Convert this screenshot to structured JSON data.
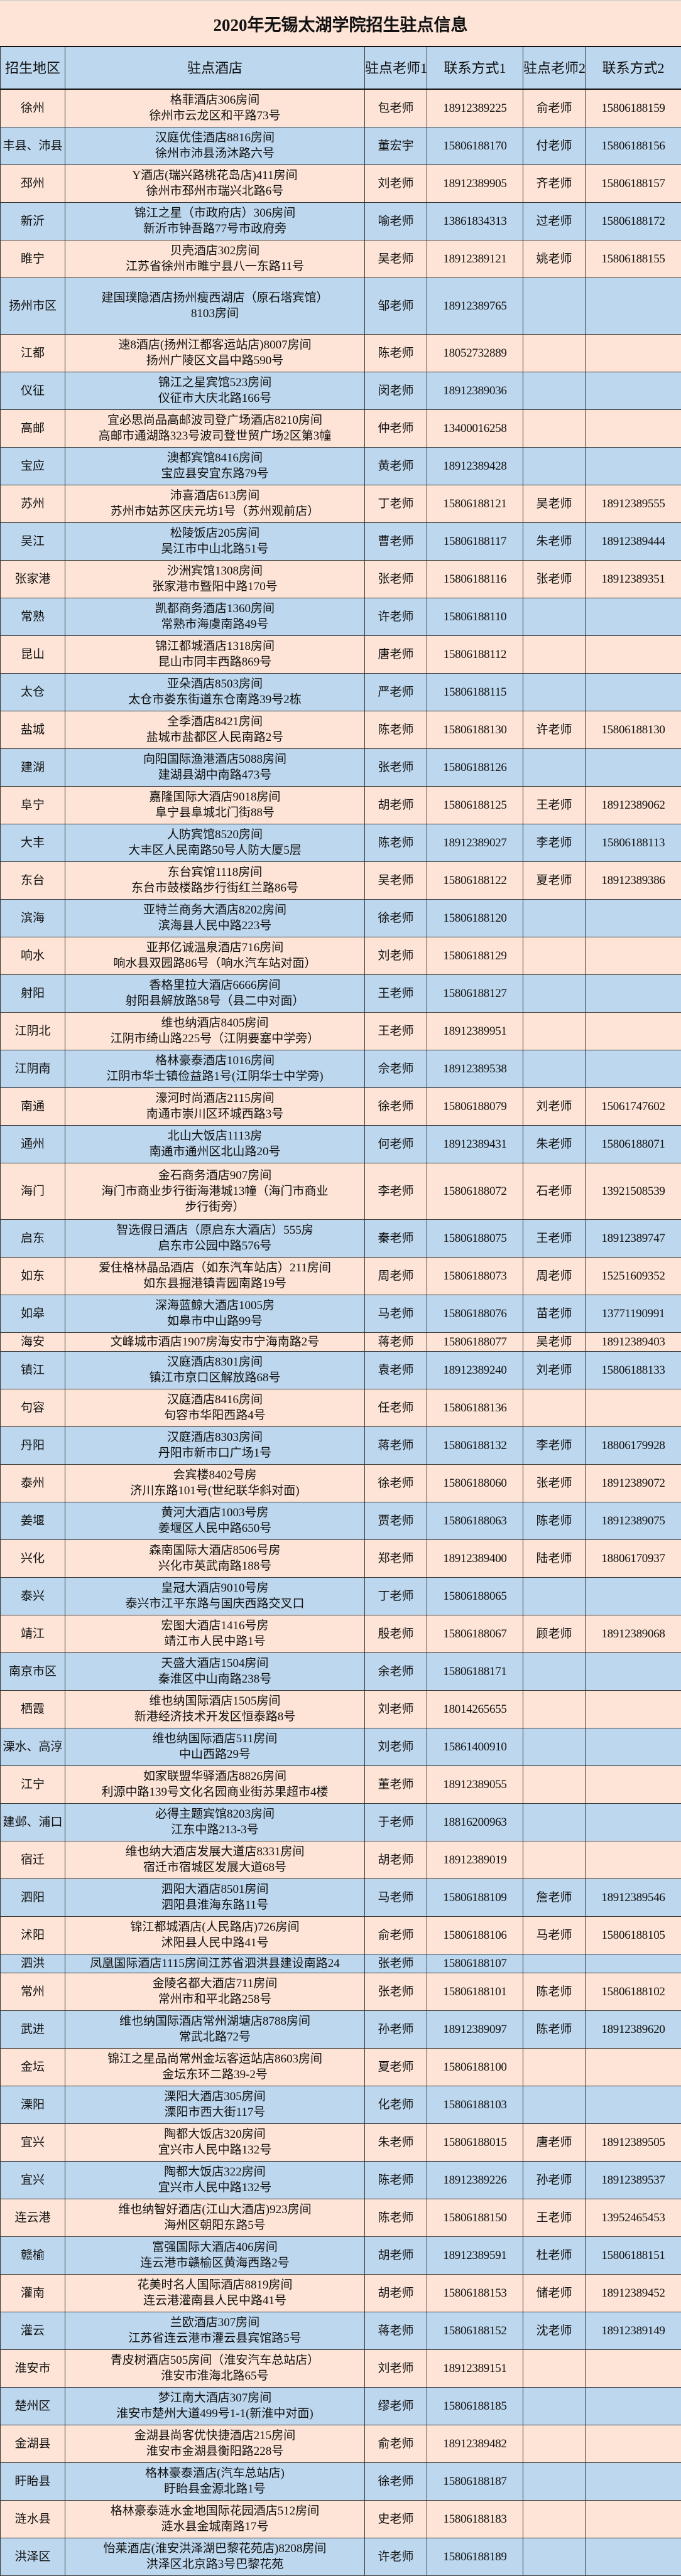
{
  "title": "2020年无锡太湖学院招生驻点信息",
  "colors": {
    "row_a": "#fde4d6",
    "row_b": "#bdd7ee",
    "header": "#bdd7ee"
  },
  "headers": [
    "招生地区",
    "驻点酒店",
    "驻点老师1",
    "联系方式1",
    "驻点老师2",
    "联系方式2"
  ],
  "rows": [
    {
      "region": "徐州",
      "hotel": [
        "格菲酒店306房间",
        "徐州市云龙区和平路73号"
      ],
      "t1": "包老师",
      "p1": "18912389225",
      "t2": "俞老师",
      "p2": "15806188159"
    },
    {
      "region": "丰县、沛县",
      "hotel": [
        "汉庭优佳酒店8816房间",
        "徐州市沛县汤沐路六号"
      ],
      "t1": "董宏宇",
      "p1": "15806188170",
      "t2": "付老师",
      "p2": "15806188156"
    },
    {
      "region": "邳州",
      "hotel": [
        "Y酒店(瑞兴路桃花岛店)411房间",
        "徐州市邳州市瑞兴北路6号"
      ],
      "t1": "刘老师",
      "p1": "18912389905",
      "t2": "齐老师",
      "p2": "15806188157"
    },
    {
      "region": "新沂",
      "hotel": [
        "锦江之星（市政府店）306房间",
        "新沂市钟吾路77号市政府旁"
      ],
      "t1": "喻老师",
      "p1": "13861834313",
      "t2": "过老师",
      "p2": "15806188172"
    },
    {
      "region": "睢宁",
      "hotel": [
        "贝壳酒店302房间",
        "江苏省徐州市睢宁县八一东路11号"
      ],
      "t1": "吴老师",
      "p1": "18912389121",
      "t2": "姚老师",
      "p2": "15806188155"
    },
    {
      "region": "扬州市区",
      "hotel": [
        "建国璞隐酒店扬州瘦西湖店（原石塔宾馆）",
        "8103房间"
      ],
      "t1": "邹老师",
      "p1": "18912389765",
      "t2": "",
      "p2": ""
    },
    {
      "region": "江都",
      "hotel": [
        "速8酒店(扬州江都客运站店)8007房间",
        "扬州广陵区文昌中路590号"
      ],
      "t1": "陈老师",
      "p1": "18052732889",
      "t2": "",
      "p2": ""
    },
    {
      "region": "仪征",
      "hotel": [
        "锦江之星宾馆523房间",
        "仪征市大庆北路166号"
      ],
      "t1": "闵老师",
      "p1": "18912389036",
      "t2": "",
      "p2": ""
    },
    {
      "region": "高邮",
      "hotel": [
        "宜必思尚品高邮波司登广场酒店8210房间",
        "高邮市通湖路323号波司登世贸广场2区第3幢"
      ],
      "t1": "仲老师",
      "p1": "13400016258",
      "t2": "",
      "p2": ""
    },
    {
      "region": "宝应",
      "hotel": [
        "澳都宾馆8416房间",
        "宝应县安宜东路79号"
      ],
      "t1": "黄老师",
      "p1": "18912389428",
      "t2": "",
      "p2": ""
    },
    {
      "region": "苏州",
      "hotel": [
        "沛喜酒店613房间",
        "苏州市姑苏区庆元坊1号（苏州观前店）"
      ],
      "t1": "丁老师",
      "p1": "15806188121",
      "t2": "吴老师",
      "p2": "18912389555"
    },
    {
      "region": "吴江",
      "hotel": [
        "松陵饭店205房间",
        "吴江市中山北路51号"
      ],
      "t1": "曹老师",
      "p1": "15806188117",
      "t2": "朱老师",
      "p2": "18912389444"
    },
    {
      "region": "张家港",
      "hotel": [
        "沙洲宾馆1308房间",
        "张家港市暨阳中路170号"
      ],
      "t1": "张老师",
      "p1": "15806188116",
      "t2": "张老师",
      "p2": "18912389351"
    },
    {
      "region": "常熟",
      "hotel": [
        "凯都商务酒店1360房间",
        "常熟市海虞南路49号"
      ],
      "t1": "许老师",
      "p1": "15806188110",
      "t2": "",
      "p2": ""
    },
    {
      "region": "昆山",
      "hotel": [
        "锦江都城酒店1318房间",
        "昆山市同丰西路869号"
      ],
      "t1": "唐老师",
      "p1": "15806188112",
      "t2": "",
      "p2": ""
    },
    {
      "region": "太仓",
      "hotel": [
        "亚朵酒店8503房间",
        "太仓市娄东街道东仓南路39号2栋"
      ],
      "t1": "严老师",
      "p1": "15806188115",
      "t2": "",
      "p2": ""
    },
    {
      "region": "盐城",
      "hotel": [
        "全季酒店8421房间",
        "盐城市盐都区人民南路2号"
      ],
      "t1": "陈老师",
      "p1": "15806188130",
      "t2": "许老师",
      "p2": "15806188130"
    },
    {
      "region": "建湖",
      "hotel": [
        "向阳国际渔港酒店5088房间",
        "建湖县湖中南路473号"
      ],
      "t1": "张老师",
      "p1": "15806188126",
      "t2": "",
      "p2": ""
    },
    {
      "region": "阜宁",
      "hotel": [
        "嘉隆国际大酒店9018房间",
        "阜宁县阜城北门街88号"
      ],
      "t1": "胡老师",
      "p1": "15806188125",
      "t2": "王老师",
      "p2": "18912389062"
    },
    {
      "region": "大丰",
      "hotel": [
        "人防宾馆8520房间",
        "大丰区人民南路50号人防大厦5层"
      ],
      "t1": "陈老师",
      "p1": "18912389027",
      "t2": "李老师",
      "p2": "15806188113"
    },
    {
      "region": "东台",
      "hotel": [
        "东台宾馆1118房间",
        "东台市鼓楼路步行街红兰路86号"
      ],
      "t1": "吴老师",
      "p1": "15806188122",
      "t2": "夏老师",
      "p2": "18912389386"
    },
    {
      "region": "滨海",
      "hotel": [
        "亚特兰商务大酒店8202房间",
        "滨海县人民中路223号"
      ],
      "t1": "徐老师",
      "p1": "15806188120",
      "t2": "",
      "p2": ""
    },
    {
      "region": "响水",
      "hotel": [
        "亚邦亿诚温泉酒店716房间",
        "响水县双园路86号（响水汽车站对面）"
      ],
      "t1": "刘老师",
      "p1": "15806188129",
      "t2": "",
      "p2": ""
    },
    {
      "region": "射阳",
      "hotel": [
        "香格里拉大酒店6666房间",
        "射阳县解放路58号（县二中对面）"
      ],
      "t1": "王老师",
      "p1": "15806188127",
      "t2": "",
      "p2": ""
    },
    {
      "region": "江阴北",
      "hotel": [
        "维也纳酒店8405房间",
        "江阴市绮山路225号（江阴要塞中学旁）"
      ],
      "t1": "王老师",
      "p1": "18912389951",
      "t2": "",
      "p2": ""
    },
    {
      "region": "江阴南",
      "hotel": [
        "格林豪泰酒店1016房间",
        "江阴市华士镇俭益路1号(江阴华士中学旁)"
      ],
      "t1": "佘老师",
      "p1": "18912389538",
      "t2": "",
      "p2": ""
    },
    {
      "region": "南通",
      "hotel": [
        "濠河时尚酒店2115房间",
        "南通市崇川区环城西路3号"
      ],
      "t1": "徐老师",
      "p1": "15806188079",
      "t2": "刘老师",
      "p2": "15061747602"
    },
    {
      "region": "通州",
      "hotel": [
        "北山大饭店1113房",
        "南通市通州区北山路20号"
      ],
      "t1": "何老师",
      "p1": "18912389431",
      "t2": "朱老师",
      "p2": "15806188071"
    },
    {
      "region": "海门",
      "hotel": [
        "金石商务酒店907房间",
        "海门市商业步行街海港城13幢（海门市商业",
        "步行街旁）"
      ],
      "t1": "李老师",
      "p1": "15806188072",
      "t2": "石老师",
      "p2": "13921508539"
    },
    {
      "region": "启东",
      "hotel": [
        "智选假日酒店（原启东大酒店）555房",
        "启东市公园中路576号"
      ],
      "t1": "秦老师",
      "p1": "15806188075",
      "t2": "王老师",
      "p2": "18912389747"
    },
    {
      "region": "如东",
      "hotel": [
        "爱住格林晶品酒店（如东汽车站店）211房间",
        "如东县掘港镇青园南路19号"
      ],
      "t1": "周老师",
      "p1": "15806188073",
      "t2": "周老师",
      "p2": "15251609352"
    },
    {
      "region": "如皋",
      "hotel": [
        "深海蓝鲸大酒店1005房",
        "如皋市中山路99号"
      ],
      "t1": "马老师",
      "p1": "15806188076",
      "t2": "苗老师",
      "p2": "13771190991"
    },
    {
      "region": "海安",
      "hotel": [
        "文峰城市酒店1907房海安市宁海南路2号"
      ],
      "t1": "蒋老师",
      "p1": "15806188077",
      "t2": "吴老师",
      "p2": "18912389403"
    },
    {
      "region": "镇江",
      "hotel": [
        "汉庭酒店8301房间",
        "镇江市京口区解放路68号"
      ],
      "t1": "袁老师",
      "p1": "18912389240",
      "t2": "刘老师",
      "p2": "15806188133"
    },
    {
      "region": "句容",
      "hotel": [
        "汉庭酒店8416房间",
        "句容市华阳西路4号"
      ],
      "t1": "任老师",
      "p1": "15806188136",
      "t2": "",
      "p2": ""
    },
    {
      "region": "丹阳",
      "hotel": [
        "汉庭酒店8303房间",
        "丹阳市新市口广场1号"
      ],
      "t1": "蒋老师",
      "p1": "15806188132",
      "t2": "李老师",
      "p2": "18806179928"
    },
    {
      "region": "泰州",
      "hotel": [
        "会宾楼8402号房",
        "济川东路101号(世纪联华斜对面)"
      ],
      "t1": "徐老师",
      "p1": "15806188060",
      "t2": "张老师",
      "p2": "18912389072"
    },
    {
      "region": "姜堰",
      "hotel": [
        "黄河大酒店1003号房",
        "姜堰区人民中路650号"
      ],
      "t1": "贾老师",
      "p1": "15806188063",
      "t2": "陈老师",
      "p2": "18912389075"
    },
    {
      "region": "兴化",
      "hotel": [
        "森南国际大酒店8506号房",
        "兴化市英武南路188号"
      ],
      "t1": "郑老师",
      "p1": "18912389400",
      "t2": "陆老师",
      "p2": "18806170937"
    },
    {
      "region": "泰兴",
      "hotel": [
        "皇冠大酒店9010号房",
        "泰兴市江平东路与国庆西路交叉口"
      ],
      "t1": "丁老师",
      "p1": "15806188065",
      "t2": "",
      "p2": ""
    },
    {
      "region": "靖江",
      "hotel": [
        "宏图大酒店1416号房",
        "靖江市人民中路1号"
      ],
      "t1": "殷老师",
      "p1": "15806188067",
      "t2": "顾老师",
      "p2": "18912389068"
    },
    {
      "region": "南京市区",
      "hotel": [
        "天盛大酒店1504房间",
        "秦淮区中山南路238号"
      ],
      "t1": "余老师",
      "p1": "15806188171",
      "t2": "",
      "p2": ""
    },
    {
      "region": "栖霞",
      "hotel": [
        "维也纳国际酒店1505房间",
        "新港经济技术开发区恒泰路8号"
      ],
      "t1": "刘老师",
      "p1": "18014265655",
      "t2": "",
      "p2": ""
    },
    {
      "region": "溧水、高淳",
      "hotel": [
        "维也纳国际酒店511房间",
        "中山西路29号"
      ],
      "t1": "刘老师",
      "p1": "15861400910",
      "t2": "",
      "p2": ""
    },
    {
      "region": "江宁",
      "hotel": [
        "如家联盟华驿酒店8826房间",
        "利源中路139号文化名园商业街苏果超市4楼"
      ],
      "t1": "董老师",
      "p1": "18912389055",
      "t2": "",
      "p2": ""
    },
    {
      "region": "建邺、浦口",
      "hotel": [
        "必得主题宾馆8203房间",
        "江东中路213-3号"
      ],
      "t1": "于老师",
      "p1": "18816200963",
      "t2": "",
      "p2": ""
    },
    {
      "region": "宿迁",
      "hotel": [
        "维也纳大酒店发展大道店8331房间",
        "宿迁市宿城区发展大道68号"
      ],
      "t1": "胡老师",
      "p1": "18912389019",
      "t2": "",
      "p2": ""
    },
    {
      "region": "泗阳",
      "hotel": [
        "泗阳大酒店8501房间",
        "泗阳县淮海东路11号"
      ],
      "t1": "马老师",
      "p1": "15806188109",
      "t2": "詹老师",
      "p2": "18912389546"
    },
    {
      "region": "沭阳",
      "hotel": [
        "锦江都城酒店(人民路店)726房间",
        "沭阳县人民中路41号"
      ],
      "t1": "俞老师",
      "p1": "15806188106",
      "t2": "马老师",
      "p2": "15806188105"
    },
    {
      "region": "泗洪",
      "hotel": [
        "凤凰国际酒店1115房间江苏省泗洪县建设南路24"
      ],
      "t1": "张老师",
      "p1": "15806188107",
      "t2": "",
      "p2": ""
    },
    {
      "region": "常州",
      "hotel": [
        "金陵名都大酒店711房间",
        "常州市和平北路258号"
      ],
      "t1": "张老师",
      "p1": "15806188101",
      "t2": "陈老师",
      "p2": "15806188102"
    },
    {
      "region": "武进",
      "hotel": [
        "维也纳国际酒店常州湖塘店8788房间",
        "常武北路72号"
      ],
      "t1": "孙老师",
      "p1": "18912389097",
      "t2": "陈老师",
      "p2": "18912389620"
    },
    {
      "region": "金坛",
      "hotel": [
        "锦江之星品尚常州金坛客运站店8603房间",
        "金坛东环二路39-2号"
      ],
      "t1": "夏老师",
      "p1": "15806188100",
      "t2": "",
      "p2": ""
    },
    {
      "region": "溧阳",
      "hotel": [
        "溧阳大酒店305房间",
        "溧阳市西大街117号"
      ],
      "t1": "化老师",
      "p1": "15806188103",
      "t2": "",
      "p2": ""
    },
    {
      "region": "宜兴",
      "hotel": [
        "陶都大饭店320房间",
        "宜兴市人民中路132号"
      ],
      "t1": "朱老师",
      "p1": "15806188015",
      "t2": "唐老师",
      "p2": "18912389505"
    },
    {
      "region": "宜兴",
      "hotel": [
        "陶都大饭店322房间",
        "宜兴市人民中路132号"
      ],
      "t1": "陈老师",
      "p1": "18912389226",
      "t2": "孙老师",
      "p2": "18912389537"
    },
    {
      "region": "连云港",
      "hotel": [
        "维也纳智好酒店(江山大酒店)923房间",
        "海州区朝阳东路5号"
      ],
      "t1": "陈老师",
      "p1": "15806188150",
      "t2": "王老师",
      "p2": "13952465453"
    },
    {
      "region": "赣榆",
      "hotel": [
        "富强国际大酒店406房间",
        "连云港市赣榆区黄海西路2号"
      ],
      "t1": "胡老师",
      "p1": "18912389591",
      "t2": "杜老师",
      "p2": "15806188151"
    },
    {
      "region": "灌南",
      "hotel": [
        "花美时名人国际酒店8819房间",
        "连云港灌南县人民中路41号"
      ],
      "t1": "胡老师",
      "p1": "15806188153",
      "t2": "储老师",
      "p2": "18912389452"
    },
    {
      "region": "灌云",
      "hotel": [
        "兰欧酒店307房间",
        "江苏省连云港市灌云县宾馆路5号"
      ],
      "t1": "蒋老师",
      "p1": "15806188152",
      "t2": "沈老师",
      "p2": "18912389149"
    },
    {
      "region": "淮安市",
      "hotel": [
        "青皮树酒店505房间（淮安汽车总站店）",
        "淮安市淮海北路65号"
      ],
      "t1": "刘老师",
      "p1": "18912389151",
      "t2": "",
      "p2": ""
    },
    {
      "region": "楚州区",
      "hotel": [
        "梦江南大酒店307房间",
        "淮安市楚州大道499号1-1(新淮中对面)"
      ],
      "t1": "缪老师",
      "p1": "15806188185",
      "t2": "",
      "p2": ""
    },
    {
      "region": "金湖县",
      "hotel": [
        "金湖县尚客优快捷酒店215房间",
        "淮安市金湖县衡阳路228号"
      ],
      "t1": "俞老师",
      "p1": "18912389482",
      "t2": "",
      "p2": ""
    },
    {
      "region": "盱眙县",
      "hotel": [
        "格林豪泰酒店(汽车总站店)",
        "盱眙县金源北路1号"
      ],
      "t1": "徐老师",
      "p1": "15806188187",
      "t2": "",
      "p2": ""
    },
    {
      "region": "涟水县",
      "hotel": [
        "格林豪泰涟水金地国际花园酒店512房间",
        "涟水县金城南路17号"
      ],
      "t1": "史老师",
      "p1": "15806188183",
      "t2": "",
      "p2": ""
    },
    {
      "region": "洪泽区",
      "hotel": [
        "怡莱酒店(淮安洪泽湖巴黎花苑店)8208房间",
        "洪泽区北京路3号巴黎花苑"
      ],
      "t1": "许老师",
      "p1": "15806188189",
      "t2": "",
      "p2": ""
    }
  ]
}
